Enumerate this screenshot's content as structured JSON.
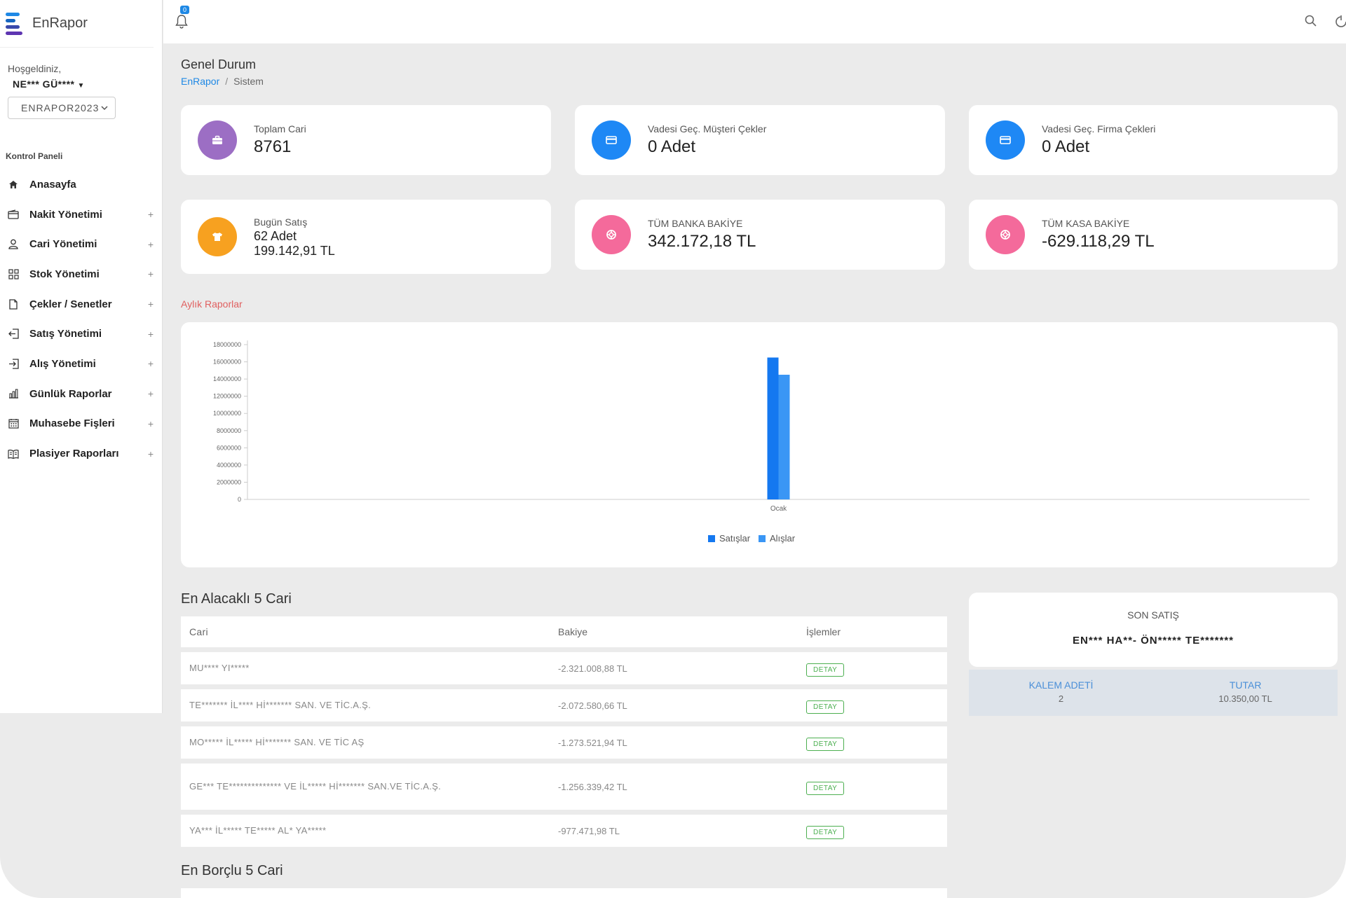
{
  "app": {
    "name": "EnRapor"
  },
  "sidebar": {
    "welcome": "Hoşgeldiniz,",
    "user": "NE*** GÜ****",
    "db": "ENRAPOR2023",
    "nav_header": "Kontrol Paneli",
    "items": [
      {
        "label": "Anasayfa",
        "icon": "home-icon",
        "expandable": false
      },
      {
        "label": "Nakit Yönetimi",
        "icon": "wallet-icon",
        "expandable": true
      },
      {
        "label": "Cari Yönetimi",
        "icon": "user-icon",
        "expandable": true
      },
      {
        "label": "Stok Yönetimi",
        "icon": "grid-icon",
        "expandable": true
      },
      {
        "label": "Çekler / Senetler",
        "icon": "document-icon",
        "expandable": true
      },
      {
        "label": "Satış Yönetimi",
        "icon": "sign-out-icon",
        "expandable": true
      },
      {
        "label": "Alış Yönetimi",
        "icon": "sign-in-icon",
        "expandable": true
      },
      {
        "label": "Günlük Raporlar",
        "icon": "bar-chart-icon",
        "expandable": true
      },
      {
        "label": "Muhasebe Fişleri",
        "icon": "calendar-icon",
        "expandable": true
      },
      {
        "label": "Plasiyer Raporları",
        "icon": "book-icon",
        "expandable": true
      }
    ],
    "plus": "+"
  },
  "topbar": {
    "notification_count": "0"
  },
  "header": {
    "title": "Genel Durum",
    "breadcrumb_root": "EnRapor",
    "breadcrumb_sep": "/",
    "breadcrumb_current": "Sistem"
  },
  "stats": [
    {
      "label": "Toplam Cari",
      "value": "8761",
      "color": "#9c6ec4",
      "icon": "briefcase-icon"
    },
    {
      "label": "Vadesi Geç. Müşteri Çekler",
      "value": "0 Adet",
      "color": "#1e88f5",
      "icon": "credit-card-icon"
    },
    {
      "label": "Vadesi Geç. Firma Çekleri",
      "value": "0 Adet",
      "color": "#1e88f5",
      "icon": "credit-card-icon"
    },
    {
      "label": "Bugün Satış",
      "value": "62 Adet",
      "value2": "199.142,91 TL",
      "color": "#f7a120",
      "icon": "shirt-icon"
    },
    {
      "label": "TÜM BANKA BAKİYE",
      "value": "342.172,18 TL",
      "color": "#f46a9b",
      "icon": "lifebuoy-icon"
    },
    {
      "label": "TÜM KASA BAKİYE",
      "value": "-629.118,29 TL",
      "color": "#f46a9b",
      "icon": "lifebuoy-icon"
    }
  ],
  "monthly": {
    "label": "Aylık Raporlar"
  },
  "chart_data": {
    "type": "bar",
    "categories": [
      "Ocak"
    ],
    "series": [
      {
        "name": "Satışlar",
        "values": [
          16500000
        ],
        "color": "#1478f0"
      },
      {
        "name": "Alışlar",
        "values": [
          14500000
        ],
        "color": "#3a96f5"
      }
    ],
    "yticks": [
      "0",
      "2000000",
      "4000000",
      "6000000",
      "8000000",
      "10000000",
      "12000000",
      "14000000",
      "16000000",
      "18000000"
    ],
    "ylim": [
      0,
      18000000
    ],
    "grid": false,
    "legend": "bottom-center"
  },
  "alacakli": {
    "title": "En Alacaklı 5 Cari",
    "headers": {
      "cari": "Cari",
      "bakiye": "Bakiye",
      "islemler": "İşlemler"
    },
    "detay": "DETAY",
    "rows": [
      {
        "cari": "MU****  YI*****",
        "bakiye": "-2.321.008,88 TL"
      },
      {
        "cari": "TE*******  İL****   Hİ*******  SAN. VE TİC.A.Ş.",
        "bakiye": "-2.072.580,66 TL"
      },
      {
        "cari": "MO*****  İL*****  Hİ*******  SAN. VE TİC AŞ",
        "bakiye": "-1.273.521,94 TL"
      },
      {
        "cari": "GE***   TE**************   VE İL*****  Hİ*******   SAN.VE TİC.A.Ş.",
        "bakiye": "-1.256.339,42 TL"
      },
      {
        "cari": "YA***  İL*****  TE*****    AL* YA*****",
        "bakiye": "-977.471,98 TL"
      }
    ]
  },
  "borclu": {
    "title": "En Borçlu 5 Cari"
  },
  "son_satis": {
    "title": "SON SATIŞ",
    "name": "EN*** HA**- ÖN*****  TE*******",
    "kalem_label": "KALEM ADETİ",
    "kalem_value": "2",
    "tutar_label": "TUTAR",
    "tutar_value": "10.350,00 TL"
  }
}
